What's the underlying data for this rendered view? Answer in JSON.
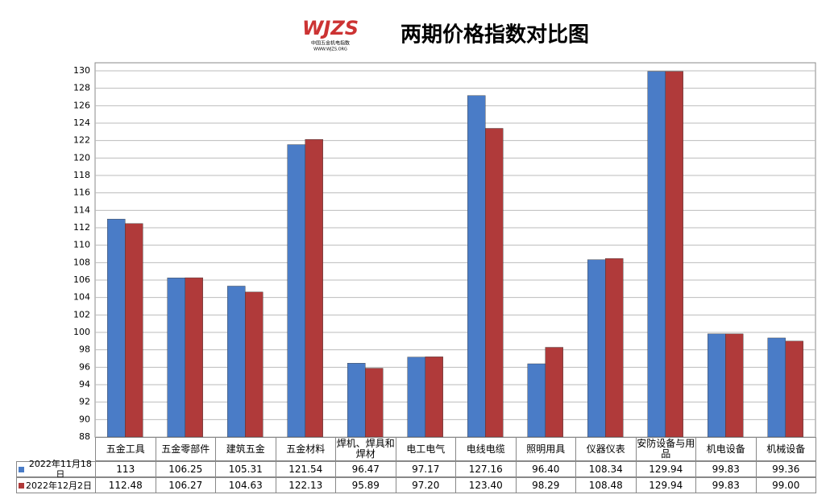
{
  "chart_data": {
    "type": "bar",
    "title": "两期价格指数对比图",
    "logo": {
      "mark": "WJZS",
      "name": "中国五金机电指数",
      "url": "WWW.WJZS.ORG"
    },
    "categories": [
      "五金工具",
      "五金零部件",
      "建筑五金",
      "五金材料",
      "焊机、焊具和焊材",
      "电工电气",
      "电线电缆",
      "照明用具",
      "仪器仪表",
      "安防设备与用品",
      "机电设备",
      "机械设备"
    ],
    "series": [
      {
        "name": "2022年11月18日",
        "color": "#4a7cc7",
        "values": [
          113,
          106.25,
          105.31,
          121.54,
          96.47,
          97.17,
          127.16,
          96.4,
          108.34,
          129.94,
          99.83,
          99.36
        ],
        "value_labels": [
          "113",
          "106.25",
          "105.31",
          "121.54",
          "96.47",
          "97.17",
          "127.16",
          "96.40",
          "108.34",
          "129.94",
          "99.83",
          "99.36"
        ]
      },
      {
        "name": "2022年12月2日",
        "color": "#b03a3a",
        "values": [
          112.48,
          106.27,
          104.63,
          122.13,
          95.89,
          97.2,
          123.4,
          98.29,
          108.48,
          129.94,
          99.83,
          99
        ],
        "value_labels": [
          "112.48",
          "106.27",
          "104.63",
          "122.13",
          "95.89",
          "97.20",
          "123.40",
          "98.29",
          "108.48",
          "129.94",
          "99.83",
          "99.00"
        ]
      }
    ],
    "ylim": [
      88,
      130
    ],
    "yticks": [
      88,
      90,
      92,
      94,
      96,
      98,
      100,
      102,
      104,
      106,
      108,
      110,
      112,
      114,
      116,
      118,
      120,
      122,
      124,
      126,
      128,
      130
    ],
    "grid": true
  }
}
